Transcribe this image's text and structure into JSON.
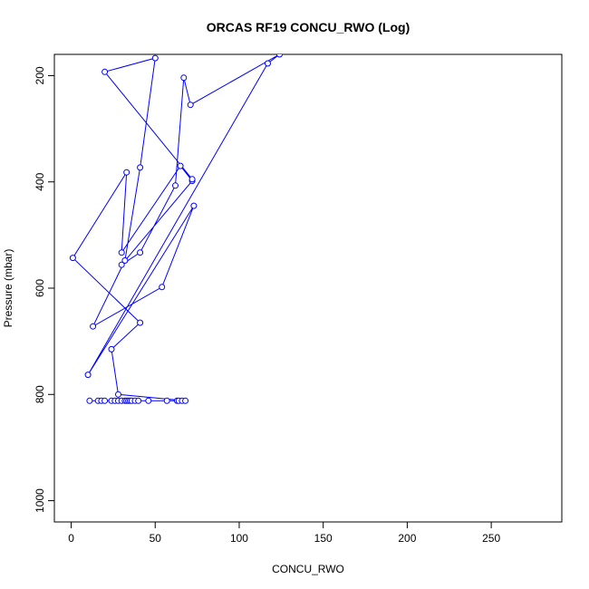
{
  "chart_data": {
    "type": "line",
    "title": "ORCAS RF19 CONCU_RWO (Log)",
    "xlabel": "CONCU_RWO",
    "ylabel": "Pressure (mbar)",
    "xlim": [
      -10,
      292
    ],
    "ylim": [
      1040,
      160
    ],
    "y_reversed": true,
    "grid": false,
    "line_color": "#0000ff",
    "x_ticks": [
      0,
      50,
      100,
      150,
      200,
      250
    ],
    "y_ticks": [
      200,
      400,
      600,
      800,
      1000
    ],
    "series": [
      {
        "points": [
          [
            11,
            812
          ],
          [
            16,
            812
          ],
          [
            18,
            812
          ],
          [
            20,
            812
          ],
          [
            24,
            812
          ],
          [
            26,
            812
          ],
          [
            28,
            812
          ],
          [
            30,
            812
          ],
          [
            32,
            812
          ],
          [
            33,
            812
          ],
          [
            34,
            812
          ],
          [
            35,
            812
          ],
          [
            36,
            812
          ],
          [
            38,
            812
          ],
          [
            40,
            812
          ],
          [
            46,
            812
          ],
          [
            57,
            812
          ],
          [
            63,
            812
          ],
          [
            64,
            812
          ],
          [
            66,
            812
          ],
          [
            68,
            812
          ],
          [
            28,
            800
          ],
          [
            24,
            715
          ],
          [
            41,
            665
          ],
          [
            1,
            543
          ],
          [
            33,
            382
          ],
          [
            30,
            533
          ],
          [
            65,
            370
          ],
          [
            72,
            398
          ],
          [
            30,
            556
          ],
          [
            41,
            533
          ],
          [
            62,
            407
          ],
          [
            67,
            204
          ],
          [
            71,
            255
          ],
          [
            124,
            160
          ],
          [
            117,
            177
          ],
          [
            10,
            763
          ],
          [
            73,
            445
          ],
          [
            54,
            598
          ],
          [
            13,
            672
          ],
          [
            32,
            548
          ],
          [
            41,
            373
          ],
          [
            50,
            167
          ],
          [
            20,
            193
          ],
          [
            72,
            395
          ]
        ]
      }
    ]
  }
}
